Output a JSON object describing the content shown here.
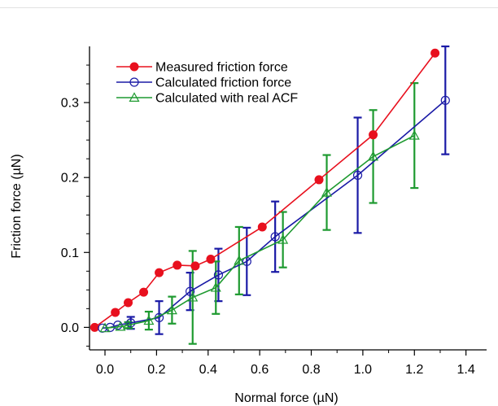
{
  "chart_data": {
    "type": "line",
    "xlabel": "Normal force (µN)",
    "ylabel": "Friction force (µN)",
    "xlim": [
      -0.06,
      1.48
    ],
    "ylim": [
      -0.03,
      0.375
    ],
    "xticks": [
      0.0,
      0.2,
      0.4,
      0.6,
      0.8,
      1.0,
      1.2,
      1.4
    ],
    "xtick_labels": [
      "0.0",
      "0.2",
      "0.4",
      "0.6",
      "0.8",
      "1.0",
      "1.2",
      "1.4"
    ],
    "yticks": [
      0.0,
      0.1,
      0.2,
      0.3
    ],
    "ytick_labels": [
      "0.0",
      "0.1",
      "0.2",
      "0.3"
    ],
    "grid": false,
    "legend_position": "top-left",
    "series": [
      {
        "name": "Measured friction force",
        "color": "#e8101e",
        "marker": "filled-circle",
        "x": [
          -0.04,
          0.04,
          0.09,
          0.15,
          0.21,
          0.28,
          0.35,
          0.41,
          0.61,
          0.83,
          1.04,
          1.28
        ],
        "y": [
          0.0,
          0.02,
          0.033,
          0.047,
          0.073,
          0.083,
          0.082,
          0.091,
          0.134,
          0.197,
          0.257,
          0.366
        ]
      },
      {
        "name": "Calculated friction force",
        "color": "#1a1aa6",
        "marker": "open-circle",
        "x": [
          -0.01,
          0.02,
          0.05,
          0.1,
          0.21,
          0.33,
          0.44,
          0.55,
          0.66,
          0.98,
          1.32
        ],
        "y": [
          -0.001,
          0.0,
          0.003,
          0.006,
          0.013,
          0.048,
          0.07,
          0.088,
          0.121,
          0.203,
          0.303
        ],
        "err": [
          0.0,
          0.0,
          0.0,
          0.008,
          0.022,
          0.025,
          0.035,
          0.045,
          0.047,
          0.077,
          0.072
        ]
      },
      {
        "name": "Calculated with real ACF",
        "color": "#1e9a30",
        "marker": "open-triangle",
        "x": [
          0.0,
          0.06,
          0.09,
          0.17,
          0.26,
          0.34,
          0.43,
          0.52,
          0.69,
          0.86,
          1.04,
          1.2
        ],
        "y": [
          -0.001,
          0.001,
          0.003,
          0.009,
          0.023,
          0.04,
          0.053,
          0.089,
          0.117,
          0.18,
          0.228,
          0.256
        ],
        "err": [
          0.0,
          0.0,
          0.004,
          0.012,
          0.018,
          0.062,
          0.035,
          0.045,
          0.037,
          0.05,
          0.062,
          0.07
        ]
      }
    ]
  }
}
